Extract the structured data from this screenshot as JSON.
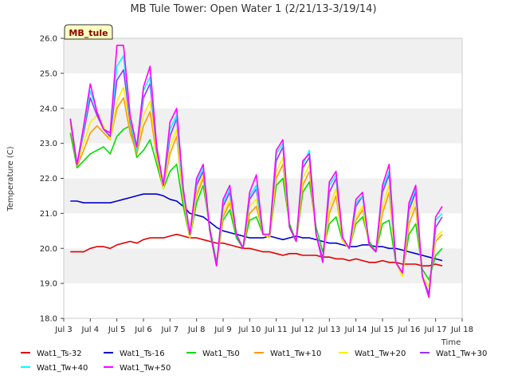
{
  "chart_data": {
    "type": "line",
    "title": "MB Tule Tower: Open Water 1 (2/21/13-3/19/14)",
    "xlabel": "Time",
    "ylabel": "Temperature (C)",
    "badge": "MB_tule",
    "xlim": [
      3,
      18
    ],
    "ylim": [
      18.0,
      26.0
    ],
    "x_ticks": [
      3,
      4,
      5,
      6,
      7,
      8,
      9,
      10,
      11,
      12,
      13,
      14,
      15,
      16,
      17,
      18
    ],
    "x_tick_labels": [
      "Jul 3",
      "Jul 4",
      "Jul 5",
      "Jul 6",
      "Jul 7",
      "Jul 8",
      "Jul 9",
      "Jul 10",
      "Jul 11",
      "Jul 12",
      "Jul 13",
      "Jul 14",
      "Jul 15",
      "Jul 16",
      "Jul 17",
      "Jul 18"
    ],
    "y_ticks": [
      18.0,
      19.0,
      20.0,
      21.0,
      22.0,
      23.0,
      24.0,
      25.0,
      26.0
    ],
    "y_tick_labels": [
      "18.0",
      "19.0",
      "20.0",
      "21.0",
      "22.0",
      "23.0",
      "24.0",
      "25.0",
      "26.0"
    ],
    "grid": true,
    "legend_position": "bottom",
    "x": [
      3.25,
      3.5,
      3.75,
      4.0,
      4.25,
      4.5,
      4.75,
      5.0,
      5.25,
      5.5,
      5.75,
      6.0,
      6.25,
      6.5,
      6.75,
      7.0,
      7.25,
      7.5,
      7.75,
      8.0,
      8.25,
      8.5,
      8.75,
      9.0,
      9.25,
      9.5,
      9.75,
      10.0,
      10.25,
      10.5,
      10.75,
      11.0,
      11.25,
      11.5,
      11.75,
      12.0,
      12.25,
      12.5,
      12.75,
      13.0,
      13.25,
      13.5,
      13.75,
      14.0,
      14.25,
      14.5,
      14.75,
      15.0,
      15.25,
      15.5,
      15.75,
      16.0,
      16.25,
      16.5,
      16.75,
      17.0,
      17.25
    ],
    "series": [
      {
        "name": "Wat1_Ts-32",
        "color": "#e00000",
        "values": [
          19.9,
          19.9,
          19.9,
          20.0,
          20.05,
          20.05,
          20.0,
          20.1,
          20.15,
          20.2,
          20.15,
          20.25,
          20.3,
          20.3,
          20.3,
          20.35,
          20.4,
          20.35,
          20.3,
          20.3,
          20.25,
          20.2,
          20.15,
          20.15,
          20.1,
          20.05,
          20.0,
          20.0,
          19.95,
          19.9,
          19.9,
          19.85,
          19.8,
          19.85,
          19.85,
          19.8,
          19.8,
          19.8,
          19.75,
          19.75,
          19.7,
          19.7,
          19.65,
          19.7,
          19.65,
          19.6,
          19.6,
          19.65,
          19.6,
          19.6,
          19.55,
          19.55,
          19.55,
          19.5,
          19.5,
          19.55,
          19.5
        ]
      },
      {
        "name": "Wat1_Ts-16",
        "color": "#0000cc",
        "values": [
          21.35,
          21.35,
          21.3,
          21.3,
          21.3,
          21.3,
          21.3,
          21.35,
          21.4,
          21.45,
          21.5,
          21.55,
          21.55,
          21.55,
          21.5,
          21.4,
          21.35,
          21.2,
          21.0,
          20.95,
          20.9,
          20.75,
          20.6,
          20.5,
          20.45,
          20.4,
          20.35,
          20.3,
          20.3,
          20.3,
          20.35,
          20.3,
          20.25,
          20.3,
          20.35,
          20.3,
          20.3,
          20.25,
          20.2,
          20.15,
          20.15,
          20.1,
          20.05,
          20.05,
          20.1,
          20.1,
          20.05,
          20.05,
          20.0,
          20.0,
          19.95,
          19.9,
          19.85,
          19.8,
          19.75,
          19.7,
          19.65
        ]
      },
      {
        "name": "Wat1_Ts0",
        "color": "#00dd00",
        "values": [
          23.3,
          22.3,
          22.5,
          22.7,
          22.8,
          22.9,
          22.7,
          23.2,
          23.4,
          23.5,
          22.6,
          22.8,
          23.1,
          22.4,
          21.7,
          22.2,
          22.4,
          21.2,
          20.3,
          21.3,
          21.8,
          20.6,
          19.6,
          20.8,
          21.1,
          20.3,
          20.0,
          20.8,
          20.9,
          20.4,
          20.3,
          21.8,
          22.0,
          20.7,
          20.2,
          21.6,
          21.9,
          20.6,
          19.9,
          20.7,
          20.9,
          20.2,
          20.0,
          20.7,
          20.9,
          20.2,
          19.9,
          20.7,
          20.8,
          19.6,
          19.3,
          20.4,
          20.7,
          19.4,
          19.1,
          19.8,
          20.0
        ]
      },
      {
        "name": "Wat1_Tw+10",
        "color": "#ff9900",
        "values": [
          23.6,
          22.35,
          22.8,
          23.3,
          23.5,
          23.3,
          23.1,
          24.0,
          24.3,
          23.3,
          22.7,
          23.5,
          23.9,
          22.6,
          21.7,
          22.7,
          23.2,
          21.4,
          20.3,
          21.5,
          22.0,
          20.5,
          19.5,
          20.9,
          21.3,
          20.4,
          20.0,
          21.0,
          21.2,
          20.4,
          20.3,
          22.0,
          22.4,
          20.6,
          20.2,
          21.8,
          22.2,
          20.4,
          19.7,
          21.0,
          21.5,
          20.2,
          20.0,
          20.8,
          21.1,
          20.1,
          19.9,
          21.0,
          21.6,
          19.6,
          19.2,
          20.7,
          21.2,
          19.2,
          18.9,
          20.2,
          20.4
        ]
      },
      {
        "name": "Wat1_Tw+20",
        "color": "#ffee00",
        "values": [
          23.7,
          22.4,
          23.0,
          23.6,
          23.8,
          23.5,
          23.1,
          24.2,
          24.6,
          23.5,
          22.8,
          23.8,
          24.2,
          22.7,
          21.7,
          22.9,
          23.4,
          21.5,
          20.3,
          21.6,
          22.1,
          20.5,
          19.5,
          21.0,
          21.4,
          20.4,
          20.0,
          21.2,
          21.4,
          20.4,
          20.3,
          22.2,
          22.6,
          20.6,
          20.2,
          22.0,
          22.4,
          20.4,
          19.7,
          21.2,
          21.7,
          20.2,
          20.0,
          20.9,
          21.2,
          20.1,
          19.9,
          21.2,
          21.8,
          19.6,
          19.2,
          20.9,
          21.4,
          19.2,
          18.9,
          20.3,
          20.5
        ]
      },
      {
        "name": "Wat1_Tw+30",
        "color": "#9933ff",
        "values": [
          23.7,
          22.4,
          23.3,
          24.3,
          23.8,
          23.4,
          23.2,
          24.8,
          25.1,
          23.6,
          22.8,
          24.3,
          24.7,
          22.8,
          21.8,
          23.2,
          23.7,
          21.6,
          20.4,
          21.8,
          22.2,
          20.5,
          19.5,
          21.2,
          21.6,
          20.4,
          20.0,
          21.4,
          21.7,
          20.4,
          20.4,
          22.5,
          22.9,
          20.6,
          20.2,
          22.3,
          22.6,
          20.4,
          19.7,
          21.6,
          22.0,
          20.3,
          20.0,
          21.2,
          21.5,
          20.1,
          19.9,
          21.6,
          22.1,
          19.6,
          19.3,
          21.1,
          21.6,
          19.2,
          18.7,
          20.6,
          20.9
        ]
      },
      {
        "name": "Wat1_Tw+40",
        "color": "#00ffff",
        "values": [
          23.7,
          22.4,
          23.4,
          24.5,
          23.9,
          23.4,
          23.3,
          25.2,
          25.5,
          23.7,
          22.8,
          24.5,
          24.9,
          22.9,
          21.8,
          23.4,
          23.8,
          21.6,
          20.4,
          21.9,
          22.3,
          20.5,
          19.5,
          21.3,
          21.7,
          20.4,
          20.0,
          21.5,
          21.8,
          20.4,
          20.4,
          22.7,
          23.0,
          20.6,
          20.2,
          22.4,
          22.8,
          20.4,
          19.6,
          21.8,
          22.1,
          20.3,
          20.0,
          21.3,
          21.5,
          20.1,
          19.9,
          21.7,
          22.2,
          19.6,
          19.3,
          21.2,
          21.7,
          19.2,
          18.6,
          20.8,
          21.0
        ]
      },
      {
        "name": "Wat1_Tw+50",
        "color": "#ff00ff",
        "values": [
          23.7,
          22.4,
          23.5,
          24.7,
          23.9,
          23.4,
          23.3,
          25.8,
          25.8,
          23.8,
          22.9,
          24.6,
          25.2,
          22.9,
          21.8,
          23.6,
          24.0,
          21.7,
          20.4,
          22.0,
          22.4,
          20.5,
          19.5,
          21.4,
          21.8,
          20.4,
          20.0,
          21.6,
          22.1,
          20.4,
          20.4,
          22.8,
          23.1,
          20.6,
          20.2,
          22.5,
          22.7,
          20.4,
          19.6,
          21.9,
          22.2,
          20.3,
          20.0,
          21.4,
          21.6,
          20.1,
          19.9,
          21.8,
          22.4,
          19.6,
          19.3,
          21.3,
          21.8,
          19.2,
          18.6,
          20.9,
          21.2
        ]
      }
    ]
  }
}
